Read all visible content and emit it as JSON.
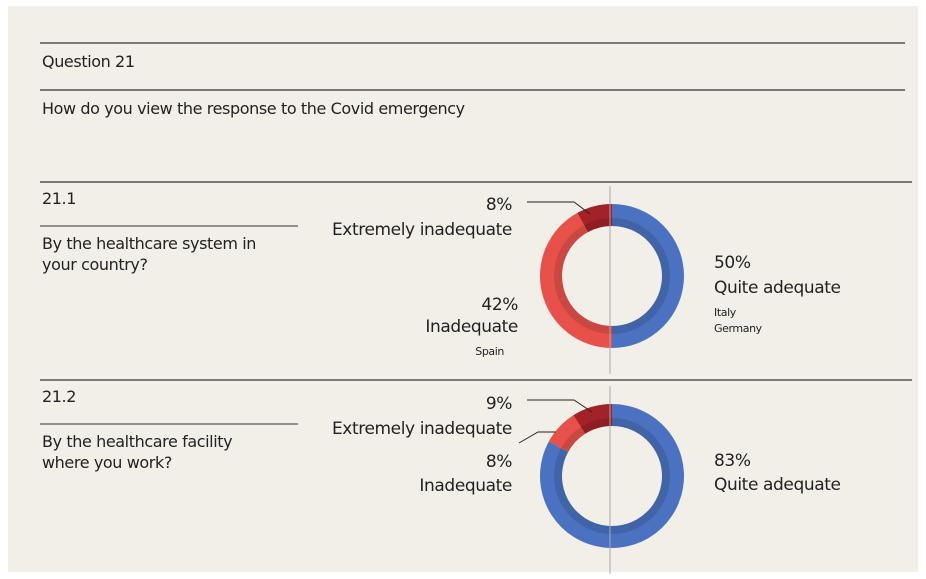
{
  "header": {
    "question": "Question 21",
    "text": "How do you view the response to the Covid emergency"
  },
  "chart_data": [
    {
      "type": "pie",
      "title": "21.1",
      "subtitle": "By the healthcare system in your country?",
      "categories": [
        "Quite adequate",
        "Inadequate",
        "Extremely inadequate"
      ],
      "values": [
        50,
        42,
        8
      ],
      "value_labels": [
        "50%",
        "42%",
        "8%"
      ],
      "colors": [
        "#4a72c0",
        "#e8514a",
        "#a32228"
      ],
      "category_notes": [
        [
          "Italy",
          "Germany"
        ],
        [
          "Spain"
        ],
        []
      ]
    },
    {
      "type": "pie",
      "title": "21.2",
      "subtitle": "By the healthcare facility where you work?",
      "categories": [
        "Quite adequate",
        "Inadequate",
        "Extremely inadequate"
      ],
      "values": [
        83,
        8,
        9
      ],
      "value_labels": [
        "83%",
        "8%",
        "9%"
      ],
      "colors": [
        "#4a72c0",
        "#e8514a",
        "#a32228"
      ],
      "category_notes": [
        [],
        [],
        []
      ]
    }
  ]
}
